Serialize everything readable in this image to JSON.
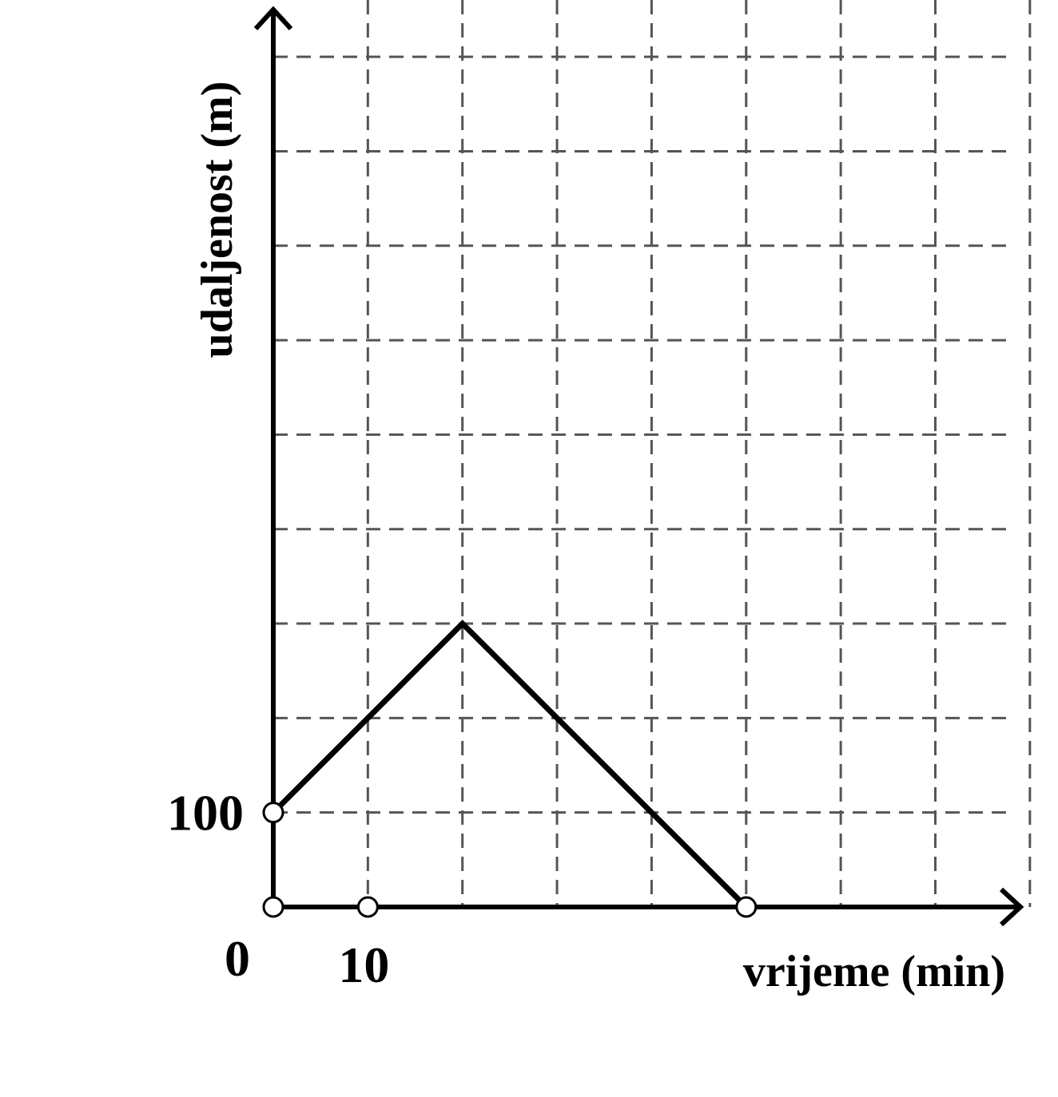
{
  "chart_data": {
    "type": "line",
    "xlabel": "vrijeme (min)",
    "ylabel": "udaljenost (m)",
    "x": [
      0,
      20,
      50
    ],
    "series": [
      {
        "color": "#000000",
        "values": [
          100,
          300,
          0
        ]
      }
    ],
    "markers": {
      "x": [
        0,
        10,
        0,
        50
      ],
      "y": [
        0,
        0,
        100,
        0
      ]
    },
    "xlim": [
      0,
      79
    ],
    "ylim": [
      0,
      950
    ],
    "xticks": [
      0,
      10
    ],
    "yticks": [
      100
    ],
    "xgrid": [
      10,
      20,
      30,
      40,
      50,
      60,
      70,
      80
    ],
    "ygrid": [
      100,
      200,
      300,
      400,
      500,
      600,
      700,
      800,
      900
    ],
    "grid": true
  }
}
